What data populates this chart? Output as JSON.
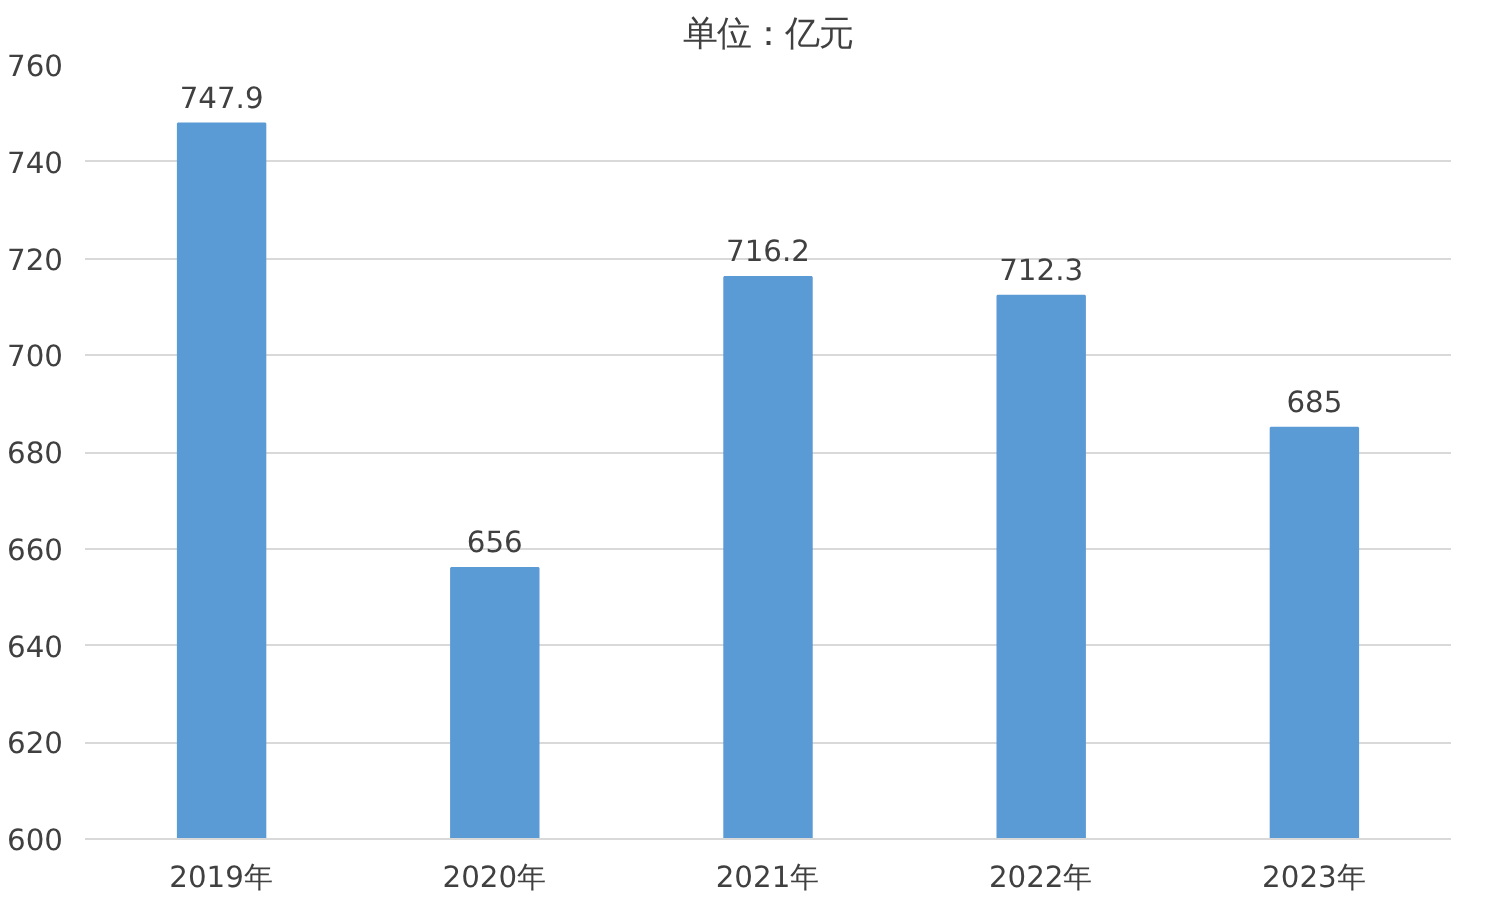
{
  "chart_data": {
    "type": "bar",
    "title": "单位：亿元",
    "categories": [
      "2019年",
      "2020年",
      "2021年",
      "2022年",
      "2023年"
    ],
    "values": [
      747.9,
      656,
      716.2,
      712.3,
      685
    ],
    "color": "#5b9bd5",
    "ylim": [
      600,
      760
    ],
    "yticks": [
      600,
      620,
      640,
      660,
      680,
      700,
      720,
      740,
      760
    ],
    "grid": "y",
    "data_labels": true
  }
}
